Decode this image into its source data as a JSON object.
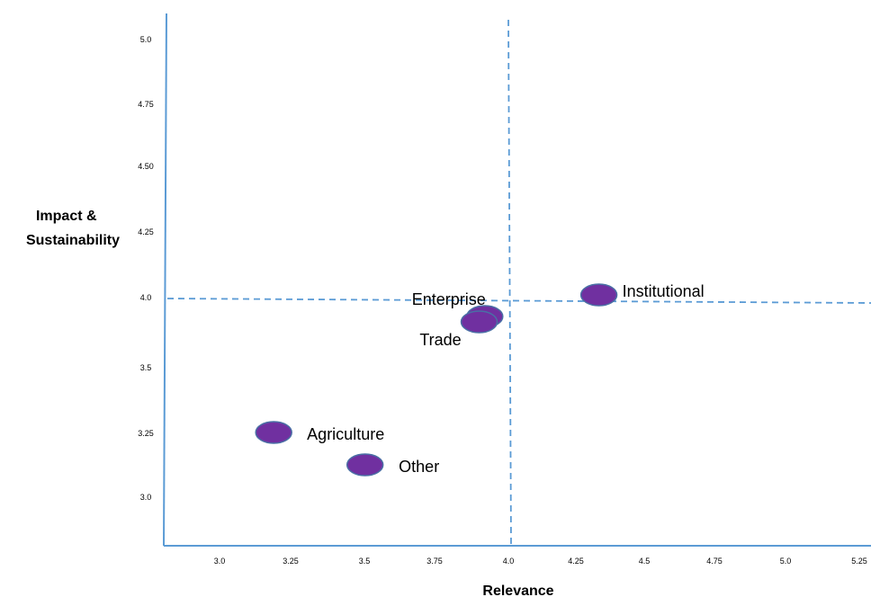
{
  "chart_data": {
    "type": "scatter",
    "xlabel": "Relevance",
    "ylabel_lines": [
      "Impact &",
      "Sustainability"
    ],
    "x_ticks": [
      "3.0",
      "3.25",
      "3.5",
      "3.75",
      "4.0",
      "4.25",
      "4.5",
      "4.75",
      "5.0",
      "5.25"
    ],
    "y_ticks": [
      "5.0",
      "4.75",
      "4.50",
      "4.25",
      "4.0",
      "3.5",
      "3.25",
      "3.0"
    ],
    "reference_lines": {
      "x": 4.0,
      "y": 4.0,
      "style": "dashed"
    },
    "marker_color": "#7030A0",
    "marker_edge_color": "#4A6FA5",
    "line_color": "#5B9BD5",
    "points": [
      {
        "name": "Institutional",
        "x": 4.33,
        "y": 4.01
      },
      {
        "name": "Enterprise",
        "x": 3.93,
        "y": 3.93
      },
      {
        "name": "Trade",
        "x": 3.91,
        "y": 3.91
      },
      {
        "name": "Agriculture",
        "x": 3.19,
        "y": 3.5
      },
      {
        "name": "Other",
        "x": 3.51,
        "y": 3.38
      }
    ]
  }
}
